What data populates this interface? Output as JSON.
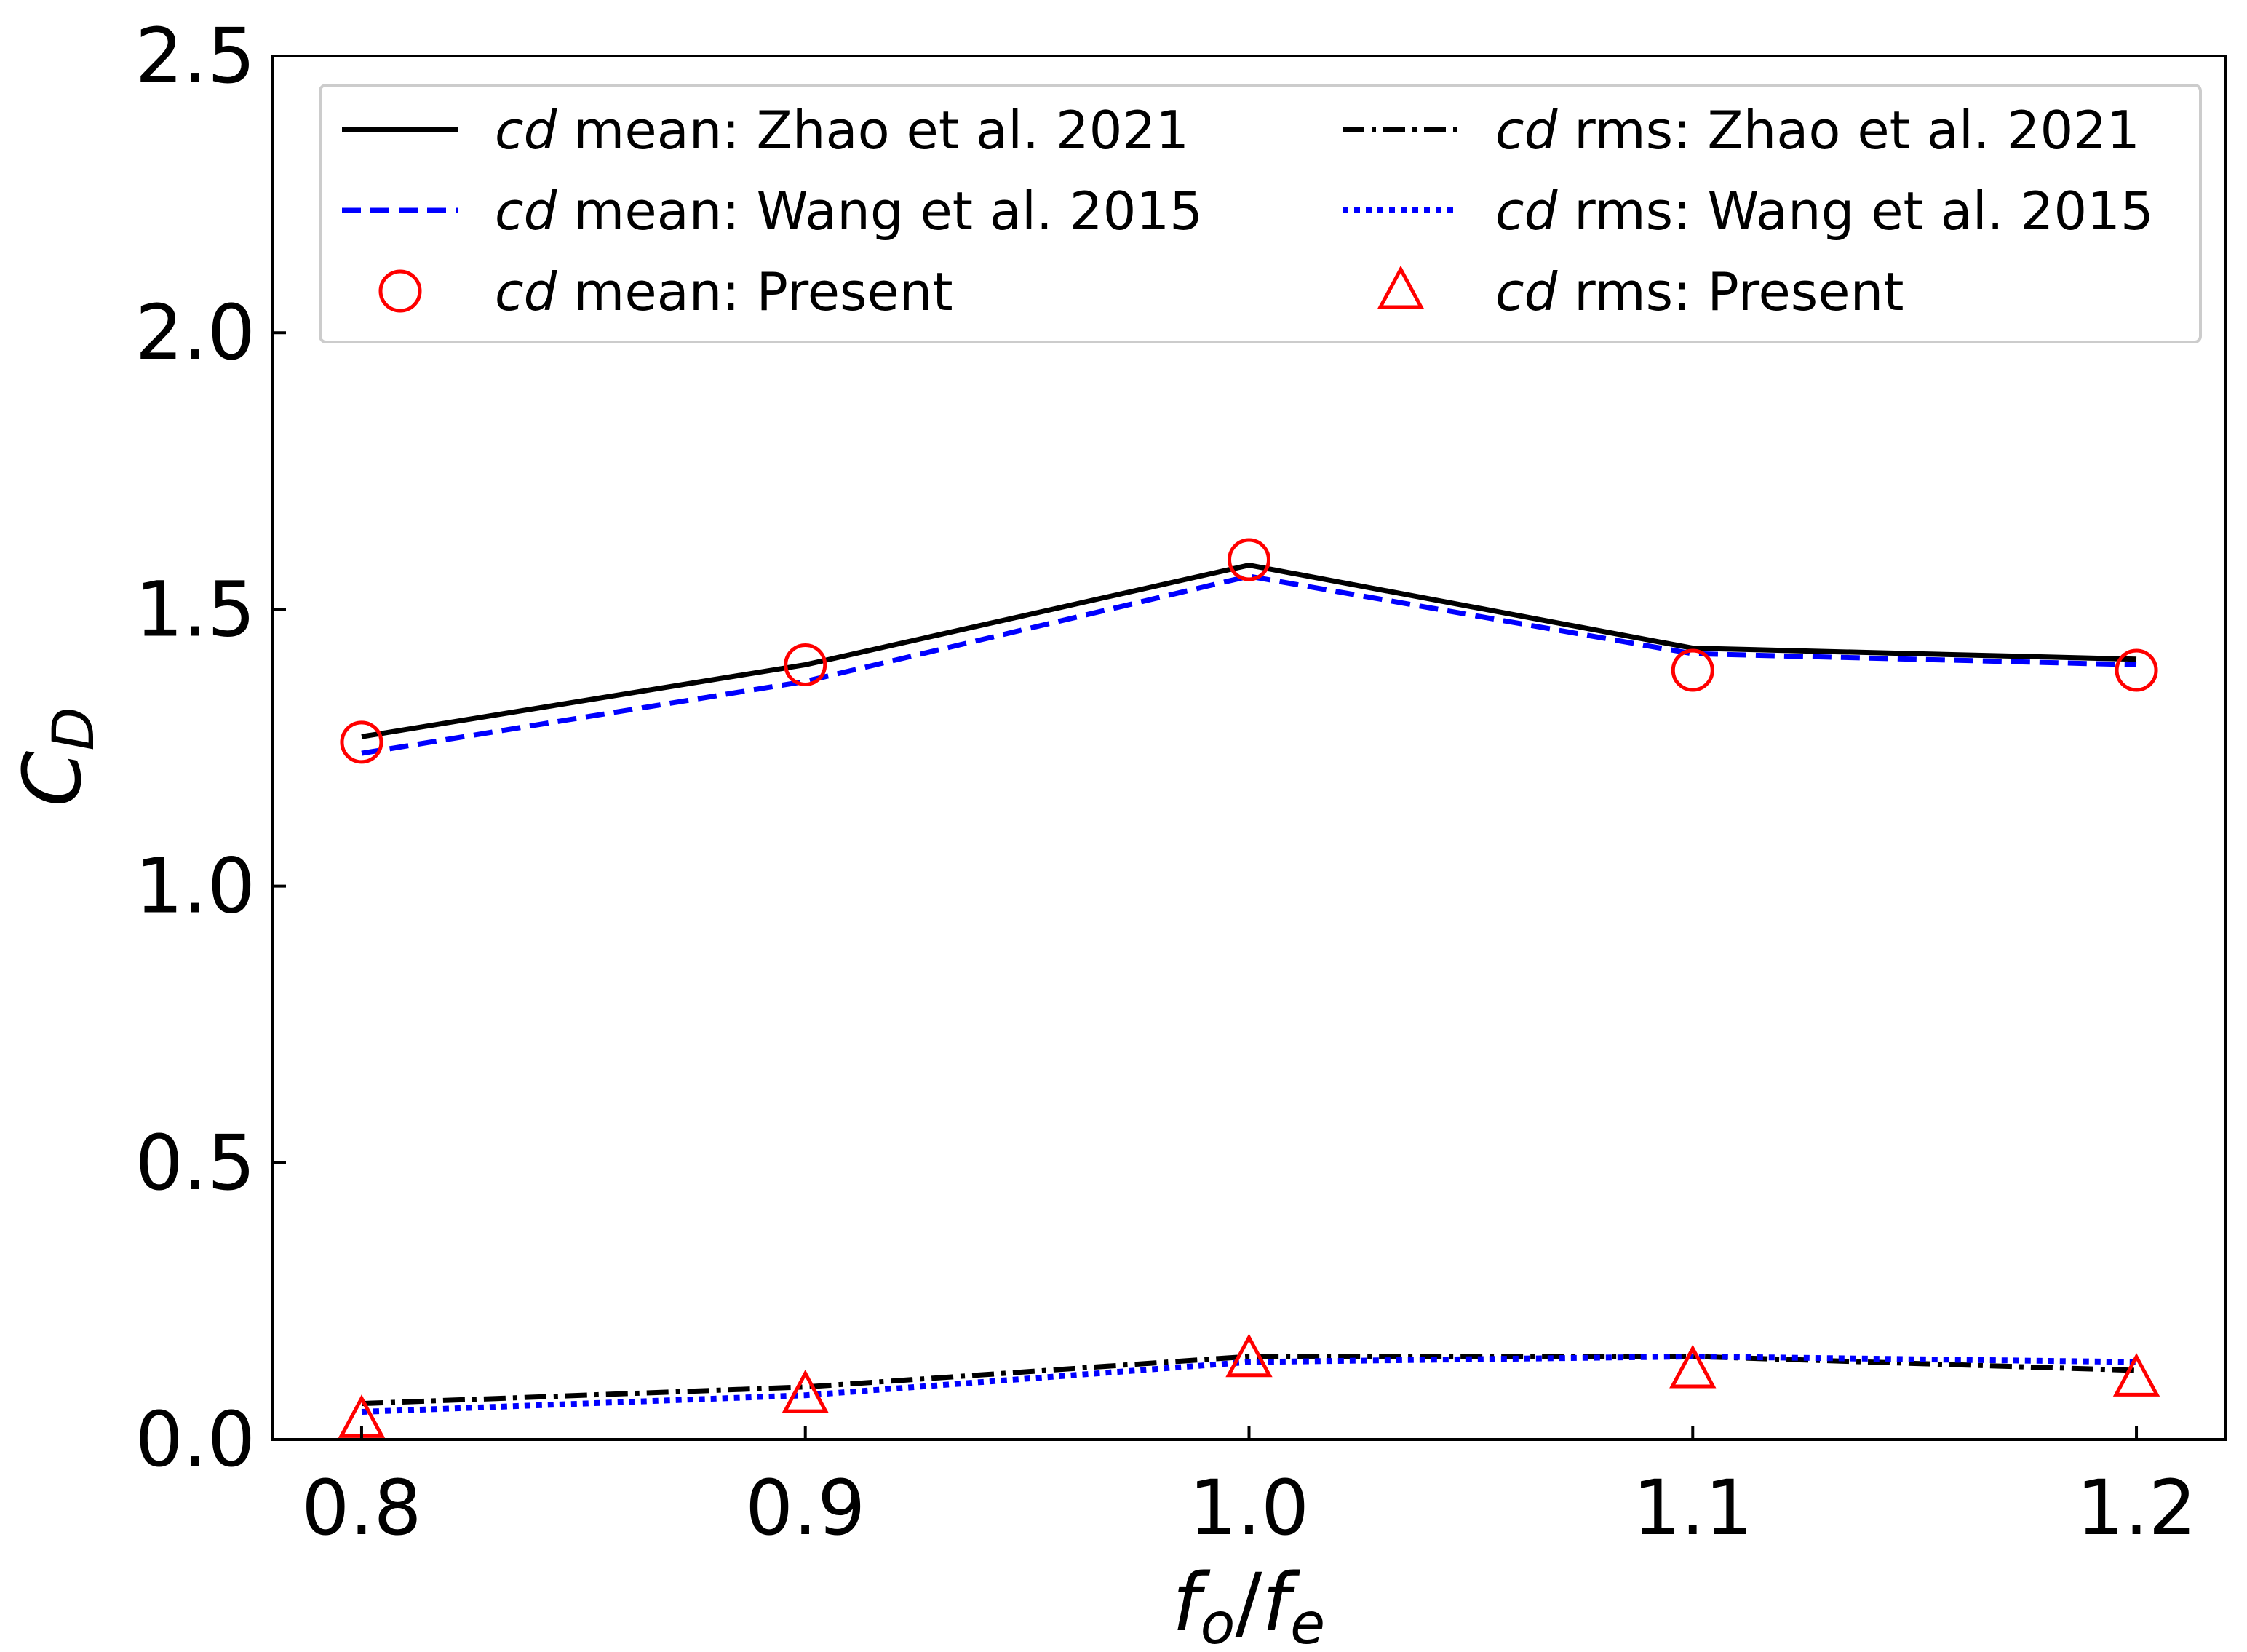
{
  "chart_data": {
    "type": "line",
    "x": [
      0.8,
      0.9,
      1.0,
      1.1,
      1.2
    ],
    "x_tick_labels": [
      "0.8",
      "0.9",
      "1.0",
      "1.1",
      "1.2"
    ],
    "y_ticks": [
      0.0,
      0.5,
      1.0,
      1.5,
      2.0,
      2.5
    ],
    "y_tick_labels": [
      "0.0",
      "0.5",
      "1.0",
      "1.5",
      "2.0",
      "2.5"
    ],
    "xlim": [
      0.78,
      1.22
    ],
    "ylim": [
      0.0,
      2.5
    ],
    "xlabel": {
      "f1": "f",
      "s1": "o",
      "sep": "/",
      "f2": "f",
      "s2": "e"
    },
    "ylabel": {
      "main": "C",
      "sub": "D"
    },
    "legend_position": "top",
    "series": [
      {
        "name_italic": "cd",
        "name_rest": " mean: Zhao et al. 2021",
        "style": "solid-line",
        "color": "#000000",
        "values": [
          1.27,
          1.4,
          1.58,
          1.43,
          1.41
        ]
      },
      {
        "name_italic": "cd",
        "name_rest": " mean: Wang et al. 2015",
        "style": "dashed-line",
        "color": "#0000ff",
        "values": [
          1.24,
          1.37,
          1.56,
          1.42,
          1.4
        ]
      },
      {
        "name_italic": "cd",
        "name_rest": " mean: Present",
        "style": "circle-marker",
        "color": "#ff0000",
        "values": [
          1.26,
          1.4,
          1.59,
          1.39,
          1.39
        ]
      },
      {
        "name_italic": "cd",
        "name_rest": " rms: Zhao et al. 2021",
        "style": "dashdot-line",
        "color": "#000000",
        "values": [
          0.065,
          0.095,
          0.15,
          0.15,
          0.125
        ]
      },
      {
        "name_italic": "cd",
        "name_rest": " rms: Wang et al. 2015",
        "style": "dotted-line",
        "color": "#0000ff",
        "values": [
          0.05,
          0.08,
          0.14,
          0.15,
          0.14
        ]
      },
      {
        "name_italic": "cd",
        "name_rest": " rms: Present",
        "style": "triangle-marker",
        "color": "#ff0000",
        "values": [
          0.035,
          0.08,
          0.145,
          0.125,
          0.11
        ]
      }
    ]
  }
}
